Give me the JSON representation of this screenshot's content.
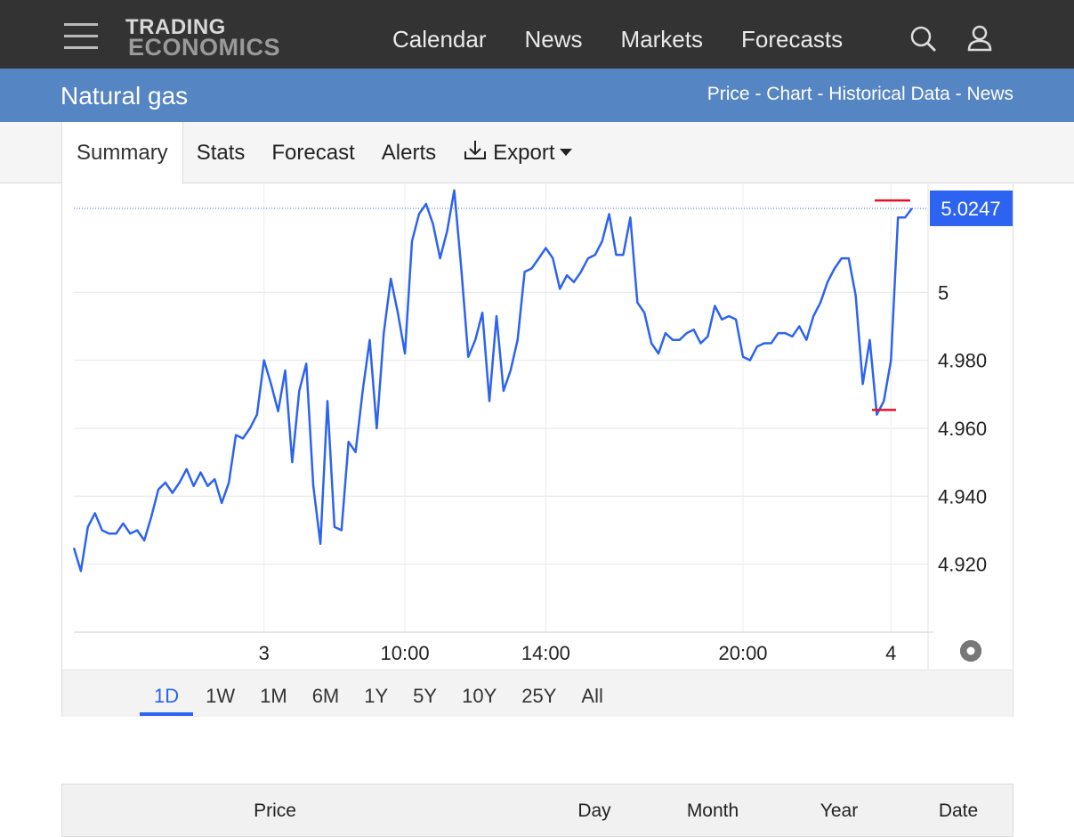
{
  "header": {
    "logo_top": "TRADING",
    "logo_bottom": "ECONOMICS",
    "nav": [
      "Calendar",
      "News",
      "Markets",
      "Forecasts"
    ]
  },
  "page": {
    "title": "Natural gas",
    "links": "Price - Chart - Historical Data - News"
  },
  "tabs": [
    "Summary",
    "Stats",
    "Forecast",
    "Alerts",
    "Export"
  ],
  "chart_data": {
    "type": "line",
    "categories": [
      null,
      null,
      null,
      null,
      null,
      null,
      null,
      null,
      null,
      null,
      null,
      null,
      null,
      null,
      null,
      null,
      null,
      null,
      null,
      null,
      null,
      null,
      null,
      null,
      null,
      null,
      null,
      "3",
      null,
      null,
      null,
      null,
      null,
      null,
      null,
      null,
      null,
      null,
      null,
      null,
      null,
      null,
      null,
      null,
      null,
      null,
      null,
      "10:00",
      null,
      null,
      null,
      null,
      null,
      null,
      null,
      null,
      null,
      null,
      null,
      null,
      null,
      null,
      null,
      null,
      null,
      null,
      null,
      "14:00",
      null,
      null,
      null,
      null,
      null,
      null,
      null,
      null,
      null,
      null,
      null,
      null,
      null,
      null,
      null,
      null,
      null,
      null,
      null,
      null,
      null,
      null,
      null,
      null,
      null,
      null,
      null,
      "20:00",
      null,
      null,
      null,
      null,
      null,
      null,
      null,
      null,
      null,
      null,
      null,
      null,
      null,
      null,
      null,
      null,
      null,
      null,
      null,
      null,
      "4",
      null,
      null,
      null
    ],
    "values": [
      4.9248,
      4.918,
      4.931,
      4.935,
      4.93,
      4.929,
      4.929,
      4.932,
      4.929,
      4.93,
      4.927,
      4.934,
      4.942,
      4.944,
      4.941,
      4.944,
      4.948,
      4.943,
      4.947,
      4.943,
      4.945,
      4.938,
      4.944,
      4.958,
      4.957,
      4.96,
      4.964,
      4.98,
      4.973,
      4.965,
      4.977,
      4.95,
      4.971,
      4.979,
      4.943,
      4.926,
      4.968,
      4.931,
      4.93,
      4.956,
      4.953,
      4.971,
      4.986,
      4.96,
      4.988,
      5.004,
      4.994,
      4.982,
      5.015,
      5.023,
      5.026,
      5.02,
      5.01,
      5.018,
      5.03,
      5.007,
      4.981,
      4.986,
      4.994,
      4.968,
      4.993,
      4.971,
      4.977,
      4.986,
      5.006,
      5.007,
      5.01,
      5.013,
      5.01,
      5.001,
      5.005,
      5.003,
      5.006,
      5.01,
      5.011,
      5.015,
      5.023,
      5.011,
      5.011,
      5.022,
      4.997,
      4.994,
      4.985,
      4.982,
      4.988,
      4.986,
      4.986,
      4.988,
      4.989,
      4.985,
      4.987,
      4.996,
      4.992,
      4.993,
      4.992,
      4.981,
      4.98,
      4.984,
      4.985,
      4.985,
      4.988,
      4.988,
      4.987,
      4.99,
      4.986,
      4.993,
      4.997,
      5.003,
      5.007,
      5.01,
      5.01,
      4.999,
      4.973,
      4.986,
      4.964,
      4.968,
      4.98,
      5.022,
      5.022,
      5.0247
    ],
    "color": "#2c63f0",
    "last": 5.0247,
    "high": 5.027,
    "low": 4.9654,
    "ylim": [
      4.9,
      5.0315
    ],
    "yticks": [
      {
        "value": 4.92,
        "label": "4.920"
      },
      {
        "value": 4.94,
        "label": "4.940"
      },
      {
        "value": 4.96,
        "label": "4.960"
      },
      {
        "value": 4.98,
        "label": "4.980"
      },
      5
    ],
    "grid": true
  },
  "ranges": [
    "1D",
    "1W",
    "1M",
    "6M",
    "1Y",
    "5Y",
    "10Y",
    "25Y",
    "All"
  ],
  "active_range": "1D",
  "table": {
    "headers": [
      "Price",
      "Day",
      "Month",
      "Year",
      "Date"
    ]
  }
}
